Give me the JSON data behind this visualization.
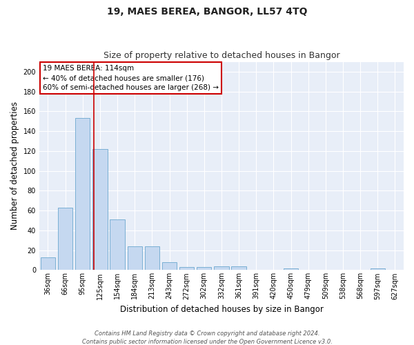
{
  "title": "19, MAES BEREA, BANGOR, LL57 4TQ",
  "subtitle": "Size of property relative to detached houses in Bangor",
  "xlabel": "Distribution of detached houses by size in Bangor",
  "ylabel": "Number of detached properties",
  "bar_labels": [
    "36sqm",
    "66sqm",
    "95sqm",
    "125sqm",
    "154sqm",
    "184sqm",
    "213sqm",
    "243sqm",
    "272sqm",
    "302sqm",
    "332sqm",
    "361sqm",
    "391sqm",
    "420sqm",
    "450sqm",
    "479sqm",
    "509sqm",
    "538sqm",
    "568sqm",
    "597sqm",
    "627sqm"
  ],
  "bar_values": [
    13,
    63,
    153,
    122,
    51,
    24,
    24,
    8,
    3,
    3,
    4,
    4,
    0,
    0,
    2,
    0,
    0,
    0,
    0,
    2,
    0
  ],
  "bar_color": "#c5d8f0",
  "bar_edge_color": "#7aafd4",
  "background_color": "#e8eef8",
  "grid_color": "#ffffff",
  "annotation_box_color": "#ffffff",
  "annotation_box_edge": "#cc0000",
  "annotation_line1": "19 MAES BEREA: 114sqm",
  "annotation_line2": "← 40% of detached houses are smaller (176)",
  "annotation_line3": "60% of semi-detached houses are larger (268) →",
  "red_line_x": 2.63,
  "ylim": [
    0,
    210
  ],
  "yticks": [
    0,
    20,
    40,
    60,
    80,
    100,
    120,
    140,
    160,
    180,
    200
  ],
  "footer1": "Contains HM Land Registry data © Crown copyright and database right 2024.",
  "footer2": "Contains public sector information licensed under the Open Government Licence v3.0.",
  "fig_width": 6.0,
  "fig_height": 5.0,
  "title_fontsize": 10,
  "subtitle_fontsize": 9,
  "ylabel_fontsize": 8.5,
  "xlabel_fontsize": 8.5,
  "tick_fontsize": 7,
  "ann_fontsize": 7.5,
  "footer_fontsize": 6
}
